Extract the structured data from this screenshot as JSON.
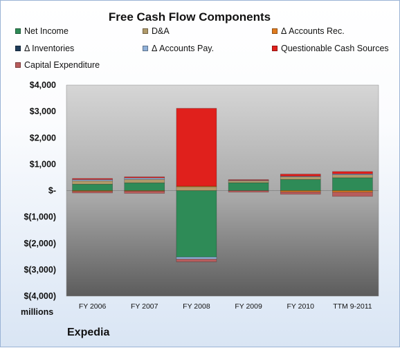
{
  "chart_data": {
    "type": "bar",
    "stacked": true,
    "title": "Free Cash Flow Components",
    "units_label": "millions",
    "company": "Expedia",
    "categories": [
      "FY 2006",
      "FY 2007",
      "FY 2008",
      "FY 2009",
      "FY 2010",
      "TTM 9-2011"
    ],
    "ylim": [
      -4000,
      4000
    ],
    "y_ticks": [
      4000,
      3000,
      2000,
      1000,
      0,
      -1000,
      -2000,
      -3000,
      -4000
    ],
    "y_tick_labels": [
      "$4,000",
      "$3,000",
      "$2,000",
      "$1,000",
      "$-",
      "$(1,000)",
      "$(2,000)",
      "$(3,000)",
      "$(4,000)"
    ],
    "legend_position": "top",
    "grid": false,
    "series": [
      {
        "name": "Net Income",
        "color": "#2e8b57",
        "values": [
          245,
          296,
          -2518,
          300,
          422,
          488
        ]
      },
      {
        "name": "D&A",
        "color": "#b09a6a",
        "values": [
          125,
          130,
          150,
          75,
          100,
          110
        ]
      },
      {
        "name": "Δ Accounts Rec.",
        "color": "#e07b1f",
        "values": [
          -30,
          -20,
          20,
          0,
          -50,
          -60
        ]
      },
      {
        "name": "Δ Inventories",
        "color": "#1f3c5a",
        "values": [
          0,
          0,
          0,
          0,
          0,
          0
        ]
      },
      {
        "name": "Δ Accounts Pay.",
        "color": "#8fb0d8",
        "values": [
          50,
          55,
          -80,
          20,
          25,
          35
        ]
      },
      {
        "name": "Questionable Cash Sources",
        "color": "#e0201c",
        "values": [
          40,
          40,
          2950,
          20,
          80,
          90
        ]
      },
      {
        "name": "Capital Expenditure",
        "color": "#b85c5c",
        "values": [
          -60,
          -85,
          -100,
          -60,
          -90,
          -160
        ]
      }
    ]
  }
}
